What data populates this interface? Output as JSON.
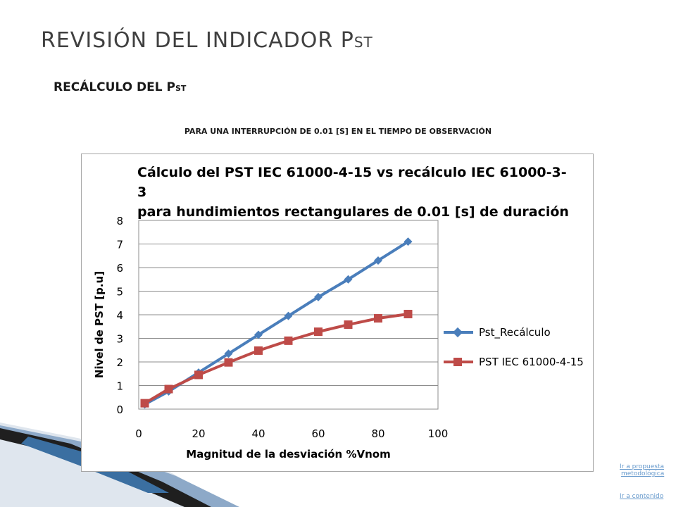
{
  "slide": {
    "title_main": "REVISIÓN DEL INDICADOR P",
    "title_sub": "ST",
    "subtitle_main": "RECÁLCULO DEL P",
    "subtitle_sub": "ST",
    "caption": "PARA UNA INTERRUPCIÓN DE 0.01 [S] EN EL TIEMPO DE OBSERVACIÓN"
  },
  "links": {
    "propuesta_line1": "Ir a propuesta",
    "propuesta_line2": "metodológica",
    "contenido": "Ir a contenido"
  },
  "chart_data": {
    "type": "line",
    "title_line1": "Cálculo del PST IEC 61000-4-15  vs recálculo IEC 61000-3-3",
    "title_line2": "para hundimientos rectangulares de 0.01 [s] de duración",
    "xlabel": "Magnitud de la desviación %Vnom",
    "ylabel": "Nivel de PST [p.u]",
    "xlim": [
      0,
      100
    ],
    "ylim": [
      0,
      8
    ],
    "xticks": [
      "0",
      "20",
      "40",
      "60",
      "80",
      "100"
    ],
    "yticks": [
      "0",
      "1",
      "2",
      "3",
      "4",
      "5",
      "6",
      "7",
      "8"
    ],
    "grid": "horizontal",
    "legend_position": "right",
    "series": [
      {
        "name": "Pst_Recálculo",
        "color": "#4a7ebb",
        "marker": "diamond",
        "x": [
          2,
          10,
          20,
          30,
          40,
          50,
          60,
          70,
          80,
          90
        ],
        "values": [
          0.2,
          0.75,
          1.55,
          2.35,
          3.15,
          3.95,
          4.75,
          5.5,
          6.3,
          7.1
        ]
      },
      {
        "name": "PST IEC 61000-4-15",
        "color": "#be4b48",
        "marker": "square",
        "x": [
          2,
          10,
          20,
          30,
          40,
          50,
          60,
          70,
          80,
          90
        ],
        "values": [
          0.25,
          0.85,
          1.45,
          1.98,
          2.48,
          2.9,
          3.28,
          3.58,
          3.85,
          4.03
        ]
      }
    ]
  }
}
